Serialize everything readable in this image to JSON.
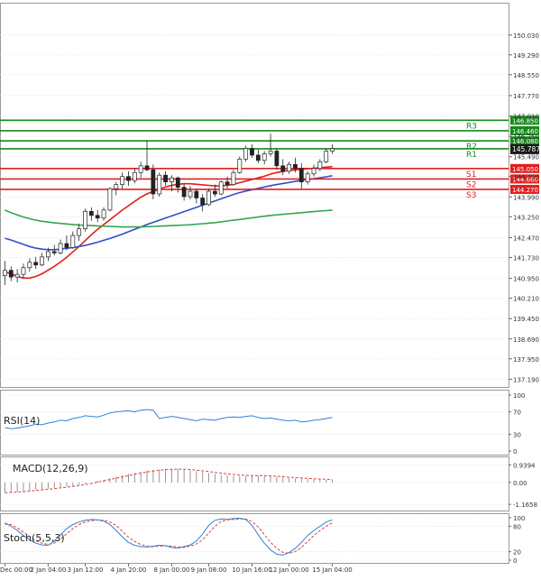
{
  "colors": {
    "up": "#2f9a2f",
    "down": "#d41c1c",
    "resistance": "#15891b",
    "support": "#e02020",
    "ma_fast": "#e11d1d",
    "ma_mid": "#2f4fc9",
    "ma_slow": "#33a64a",
    "indicator": "#2f7fd8",
    "signal": "#e43c3c",
    "grid": "#cfd3d8",
    "axis_text": "#333333",
    "current_bg": "#1a1a1a"
  },
  "chart_data": {
    "type": "candlestick",
    "price_axis": {
      "ylim": [
        137.0,
        151.0
      ],
      "ticks": [
        "150.030",
        "149.290",
        "148.550",
        "147.770",
        "147.010",
        "146.250",
        "145.490",
        "144.750",
        "143.990",
        "143.250",
        "142.470",
        "141.730",
        "140.950",
        "140.210",
        "139.450",
        "138.690",
        "137.950",
        "137.190"
      ],
      "current_price": "145.787"
    },
    "x_ticks": [
      "Dec 00:00",
      "2 Jan 04:00",
      "3 Jan 12:00",
      "4 Jan 20:00",
      "8 Jan 00:00",
      "9 Jan 08:00",
      "10 Jan 16:00",
      "12 Jan 00:00",
      "15 Jan 04:00"
    ],
    "candles": [
      {
        "o": 141.05,
        "h": 141.6,
        "l": 140.7,
        "c": 141.25
      },
      {
        "o": 141.25,
        "h": 141.4,
        "l": 140.85,
        "c": 141.0
      },
      {
        "o": 141.0,
        "h": 141.3,
        "l": 140.8,
        "c": 141.1
      },
      {
        "o": 141.1,
        "h": 141.5,
        "l": 140.95,
        "c": 141.35
      },
      {
        "o": 141.35,
        "h": 141.7,
        "l": 141.2,
        "c": 141.55
      },
      {
        "o": 141.55,
        "h": 141.75,
        "l": 141.3,
        "c": 141.45
      },
      {
        "o": 141.45,
        "h": 141.9,
        "l": 141.4,
        "c": 141.75
      },
      {
        "o": 141.75,
        "h": 142.1,
        "l": 141.6,
        "c": 141.95
      },
      {
        "o": 141.95,
        "h": 142.2,
        "l": 141.8,
        "c": 141.9
      },
      {
        "o": 141.9,
        "h": 142.4,
        "l": 141.85,
        "c": 142.25
      },
      {
        "o": 142.25,
        "h": 142.55,
        "l": 142.0,
        "c": 142.1
      },
      {
        "o": 142.1,
        "h": 142.7,
        "l": 142.05,
        "c": 142.55
      },
      {
        "o": 142.55,
        "h": 143.0,
        "l": 142.35,
        "c": 142.8
      },
      {
        "o": 142.8,
        "h": 143.55,
        "l": 142.7,
        "c": 143.45
      },
      {
        "o": 143.45,
        "h": 143.6,
        "l": 143.1,
        "c": 143.3
      },
      {
        "o": 143.3,
        "h": 143.5,
        "l": 143.05,
        "c": 143.2
      },
      {
        "o": 143.2,
        "h": 143.6,
        "l": 143.1,
        "c": 143.5
      },
      {
        "o": 143.5,
        "h": 144.35,
        "l": 143.45,
        "c": 144.3
      },
      {
        "o": 144.3,
        "h": 144.55,
        "l": 144.05,
        "c": 144.45
      },
      {
        "o": 144.45,
        "h": 144.9,
        "l": 144.3,
        "c": 144.75
      },
      {
        "o": 144.75,
        "h": 144.95,
        "l": 144.4,
        "c": 144.6
      },
      {
        "o": 144.6,
        "h": 145.05,
        "l": 144.5,
        "c": 144.9
      },
      {
        "o": 144.9,
        "h": 145.3,
        "l": 144.7,
        "c": 145.15
      },
      {
        "o": 145.15,
        "h": 146.1,
        "l": 144.95,
        "c": 145.0
      },
      {
        "o": 145.0,
        "h": 145.2,
        "l": 143.9,
        "c": 144.1
      },
      {
        "o": 144.1,
        "h": 144.9,
        "l": 144.0,
        "c": 144.8
      },
      {
        "o": 144.8,
        "h": 144.95,
        "l": 144.4,
        "c": 144.55
      },
      {
        "o": 144.55,
        "h": 144.8,
        "l": 144.2,
        "c": 144.7
      },
      {
        "o": 144.7,
        "h": 144.75,
        "l": 144.15,
        "c": 144.35
      },
      {
        "o": 144.35,
        "h": 144.5,
        "l": 143.85,
        "c": 144.0
      },
      {
        "o": 144.0,
        "h": 144.4,
        "l": 143.9,
        "c": 144.2
      },
      {
        "o": 144.2,
        "h": 144.3,
        "l": 143.75,
        "c": 143.95
      },
      {
        "o": 143.95,
        "h": 144.1,
        "l": 143.45,
        "c": 143.7
      },
      {
        "o": 143.7,
        "h": 144.3,
        "l": 143.65,
        "c": 144.2
      },
      {
        "o": 144.2,
        "h": 144.45,
        "l": 144.0,
        "c": 144.1
      },
      {
        "o": 144.1,
        "h": 144.6,
        "l": 144.05,
        "c": 144.55
      },
      {
        "o": 144.55,
        "h": 144.75,
        "l": 144.3,
        "c": 144.45
      },
      {
        "o": 144.45,
        "h": 145.0,
        "l": 144.4,
        "c": 144.9
      },
      {
        "o": 144.9,
        "h": 145.5,
        "l": 144.85,
        "c": 145.4
      },
      {
        "o": 145.4,
        "h": 145.9,
        "l": 145.3,
        "c": 145.8
      },
      {
        "o": 145.8,
        "h": 145.95,
        "l": 145.45,
        "c": 145.55
      },
      {
        "o": 145.55,
        "h": 145.75,
        "l": 145.25,
        "c": 145.35
      },
      {
        "o": 145.35,
        "h": 145.7,
        "l": 145.2,
        "c": 145.6
      },
      {
        "o": 145.6,
        "h": 146.35,
        "l": 145.5,
        "c": 145.7
      },
      {
        "o": 145.7,
        "h": 145.8,
        "l": 145.0,
        "c": 145.15
      },
      {
        "o": 145.15,
        "h": 145.4,
        "l": 144.8,
        "c": 144.95
      },
      {
        "o": 144.95,
        "h": 145.3,
        "l": 144.85,
        "c": 145.2
      },
      {
        "o": 145.2,
        "h": 145.45,
        "l": 144.9,
        "c": 145.05
      },
      {
        "o": 145.05,
        "h": 145.25,
        "l": 144.3,
        "c": 144.55
      },
      {
        "o": 144.55,
        "h": 144.95,
        "l": 144.45,
        "c": 144.85
      },
      {
        "o": 144.85,
        "h": 145.2,
        "l": 144.75,
        "c": 145.05
      },
      {
        "o": 145.05,
        "h": 145.4,
        "l": 144.95,
        "c": 145.3
      },
      {
        "o": 145.3,
        "h": 145.8,
        "l": 145.25,
        "c": 145.7
      },
      {
        "o": 145.7,
        "h": 145.95,
        "l": 145.6,
        "c": 145.79
      }
    ],
    "moving_averages": [
      {
        "color_key": "ma_fast",
        "values": [
          141.2,
          141.12,
          141.02,
          140.96,
          140.96,
          141.02,
          141.12,
          141.26,
          141.4,
          141.56,
          141.74,
          141.94,
          142.14,
          142.36,
          142.58,
          142.78,
          142.96,
          143.14,
          143.32,
          143.5,
          143.66,
          143.82,
          143.98,
          144.1,
          144.2,
          144.28,
          144.36,
          144.42,
          144.46,
          144.48,
          144.48,
          144.46,
          144.44,
          144.42,
          144.4,
          144.4,
          144.42,
          144.46,
          144.52,
          144.58,
          144.64,
          144.7,
          144.76,
          144.84,
          144.9,
          144.94,
          144.98,
          145.0,
          145.02,
          145.04,
          145.06,
          145.08,
          145.1,
          145.12
        ]
      },
      {
        "color_key": "ma_mid",
        "values": [
          142.45,
          142.38,
          142.3,
          142.22,
          142.14,
          142.08,
          142.04,
          142.02,
          142.02,
          142.04,
          142.07,
          142.1,
          142.14,
          142.18,
          142.24,
          142.3,
          142.37,
          142.44,
          142.52,
          142.6,
          142.69,
          142.78,
          142.87,
          142.96,
          143.04,
          143.12,
          143.2,
          143.28,
          143.36,
          143.44,
          143.52,
          143.6,
          143.68,
          143.76,
          143.84,
          143.92,
          144.0,
          144.08,
          144.15,
          144.21,
          144.26,
          144.31,
          144.36,
          144.41,
          144.45,
          144.49,
          144.53,
          144.57,
          144.61,
          144.64,
          144.67,
          144.7,
          144.74,
          144.78
        ]
      },
      {
        "color_key": "ma_slow",
        "values": [
          143.5,
          143.4,
          143.32,
          143.24,
          143.18,
          143.12,
          143.08,
          143.05,
          143.02,
          143.0,
          142.98,
          142.96,
          142.94,
          142.93,
          142.92,
          142.91,
          142.9,
          142.89,
          142.88,
          142.87,
          142.87,
          142.87,
          142.87,
          142.88,
          142.89,
          142.9,
          142.91,
          142.92,
          142.93,
          142.94,
          142.95,
          142.97,
          142.99,
          143.01,
          143.03,
          143.06,
          143.09,
          143.12,
          143.15,
          143.18,
          143.21,
          143.24,
          143.27,
          143.3,
          143.32,
          143.34,
          143.36,
          143.38,
          143.4,
          143.42,
          143.44,
          143.46,
          143.48,
          143.5
        ]
      }
    ],
    "levels": [
      {
        "label": "R3",
        "value": 146.85,
        "price_label": "146.850",
        "kind": "resistance"
      },
      {
        "label": "",
        "value": 146.46,
        "price_label": "146.460",
        "kind": "resistance"
      },
      {
        "label": "R2",
        "value": 146.08,
        "price_label": "146.080",
        "kind": "resistance"
      },
      {
        "label": "R1",
        "value": 145.787,
        "price_label": "",
        "kind": "resistance"
      },
      {
        "label": "S1",
        "value": 145.05,
        "price_label": "145.050",
        "kind": "support"
      },
      {
        "label": "S2",
        "value": 144.66,
        "price_label": "144.660",
        "kind": "support"
      },
      {
        "label": "S3",
        "value": 144.27,
        "price_label": "144.270",
        "kind": "support"
      }
    ],
    "rsi": {
      "label": "RSI(14)",
      "ticks": [
        "100",
        "70",
        "30",
        "0"
      ],
      "tick_values": [
        100,
        70,
        30,
        0
      ],
      "values": [
        42,
        40,
        41,
        43,
        45,
        48,
        47,
        50,
        52,
        55,
        54,
        58,
        60,
        63,
        62,
        61,
        64,
        68,
        70,
        71,
        72,
        70,
        73,
        74,
        73,
        58,
        60,
        62,
        60,
        58,
        56,
        54,
        57,
        56,
        55,
        58,
        60,
        61,
        60,
        62,
        63,
        60,
        58,
        59,
        57,
        55,
        54,
        55,
        52,
        53,
        55,
        56,
        58,
        60
      ]
    },
    "macd": {
      "label": "MACD(12,26,9)",
      "ticks": [
        "0.9394",
        "0.00",
        "-1.1658"
      ],
      "tick_values": [
        0.9394,
        0,
        -1.1658
      ],
      "ylim": [
        -1.4,
        1.1
      ],
      "histogram": [
        -0.55,
        -0.52,
        -0.5,
        -0.47,
        -0.44,
        -0.4,
        -0.37,
        -0.33,
        -0.3,
        -0.26,
        -0.22,
        -0.18,
        -0.12,
        -0.06,
        0.0,
        0.08,
        0.15,
        0.22,
        0.3,
        0.38,
        0.45,
        0.52,
        0.58,
        0.63,
        0.68,
        0.7,
        0.72,
        0.72,
        0.7,
        0.68,
        0.65,
        0.6,
        0.55,
        0.5,
        0.45,
        0.4,
        0.38,
        0.35,
        0.34,
        0.34,
        0.35,
        0.36,
        0.35,
        0.33,
        0.3,
        0.27,
        0.24,
        0.22,
        0.2,
        0.18,
        0.16,
        0.15,
        0.14,
        0.14
      ],
      "signal": [
        -0.55,
        -0.53,
        -0.51,
        -0.49,
        -0.46,
        -0.43,
        -0.4,
        -0.36,
        -0.33,
        -0.29,
        -0.25,
        -0.21,
        -0.16,
        -0.11,
        -0.05,
        0.02,
        0.09,
        0.16,
        0.23,
        0.3,
        0.37,
        0.44,
        0.5,
        0.56,
        0.61,
        0.65,
        0.68,
        0.7,
        0.71,
        0.71,
        0.69,
        0.66,
        0.62,
        0.58,
        0.54,
        0.5,
        0.46,
        0.43,
        0.4,
        0.38,
        0.37,
        0.37,
        0.36,
        0.35,
        0.33,
        0.31,
        0.28,
        0.26,
        0.24,
        0.22,
        0.2,
        0.18,
        0.17,
        0.16
      ]
    },
    "stoch": {
      "label": "Stoch(5,5,3)",
      "ticks": [
        "100",
        "80",
        "20",
        "0"
      ],
      "tick_values": [
        100,
        80,
        20,
        0
      ],
      "k": [
        88,
        80,
        70,
        58,
        48,
        40,
        36,
        35,
        45,
        60,
        74,
        84,
        90,
        94,
        96,
        95,
        92,
        84,
        70,
        55,
        42,
        35,
        32,
        31,
        33,
        35,
        34,
        30,
        28,
        32,
        36,
        45,
        62,
        82,
        94,
        97,
        96,
        98,
        99,
        96,
        82,
        60,
        40,
        24,
        14,
        12,
        18,
        28,
        42,
        58,
        70,
        80,
        90,
        95
      ],
      "d": [
        85,
        84,
        76,
        66,
        56,
        46,
        40,
        37,
        40,
        50,
        62,
        74,
        84,
        90,
        93,
        95,
        94,
        90,
        82,
        68,
        54,
        44,
        37,
        33,
        32,
        33,
        34,
        33,
        31,
        30,
        33,
        38,
        48,
        64,
        80,
        91,
        95,
        96,
        97,
        97,
        91,
        78,
        60,
        42,
        28,
        18,
        16,
        20,
        30,
        44,
        58,
        70,
        80,
        88
      ]
    }
  }
}
